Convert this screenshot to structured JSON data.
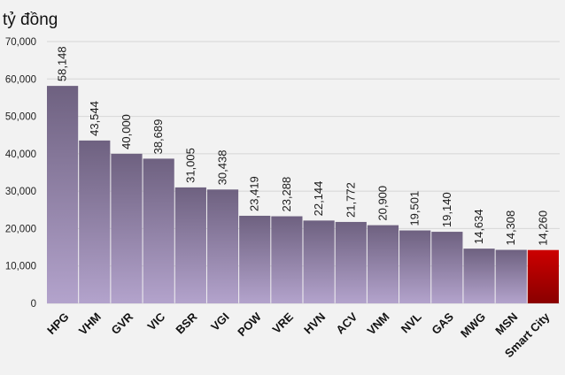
{
  "chart_data": {
    "type": "bar",
    "unit_label": "tỷ đồng",
    "categories": [
      "HPG",
      "VHM",
      "GVR",
      "VIC",
      "BSR",
      "VGI",
      "POW",
      "VRE",
      "HVN",
      "ACV",
      "VNM",
      "NVL",
      "GAS",
      "MWG",
      "MSN",
      "Smart City"
    ],
    "values": [
      58148,
      43544,
      40000,
      38689,
      31005,
      30438,
      23419,
      23288,
      22144,
      21772,
      20900,
      19501,
      19140,
      14634,
      14308,
      14260
    ],
    "value_labels": [
      "58,148",
      "43,544",
      "40,000",
      "38,689",
      "31,005",
      "30,438",
      "23,419",
      "23,288",
      "22,144",
      "21,772",
      "20,900",
      "19,501",
      "19,140",
      "14,634",
      "14,308",
      "14,260"
    ],
    "ylim": [
      0,
      70000
    ],
    "yticks": [
      0,
      10000,
      20000,
      30000,
      40000,
      50000,
      60000,
      70000
    ],
    "ytick_labels": [
      "0",
      "10,000",
      "20,000",
      "30,000",
      "40,000",
      "50,000",
      "60,000",
      "70,000"
    ],
    "grid": true,
    "colors": {
      "bar_top": "#6e6180",
      "bar_bottom": "#b3a3cc",
      "highlight_top": "#cc0000",
      "highlight_bottom": "#8a0000",
      "highlight_category": "Smart City"
    }
  }
}
